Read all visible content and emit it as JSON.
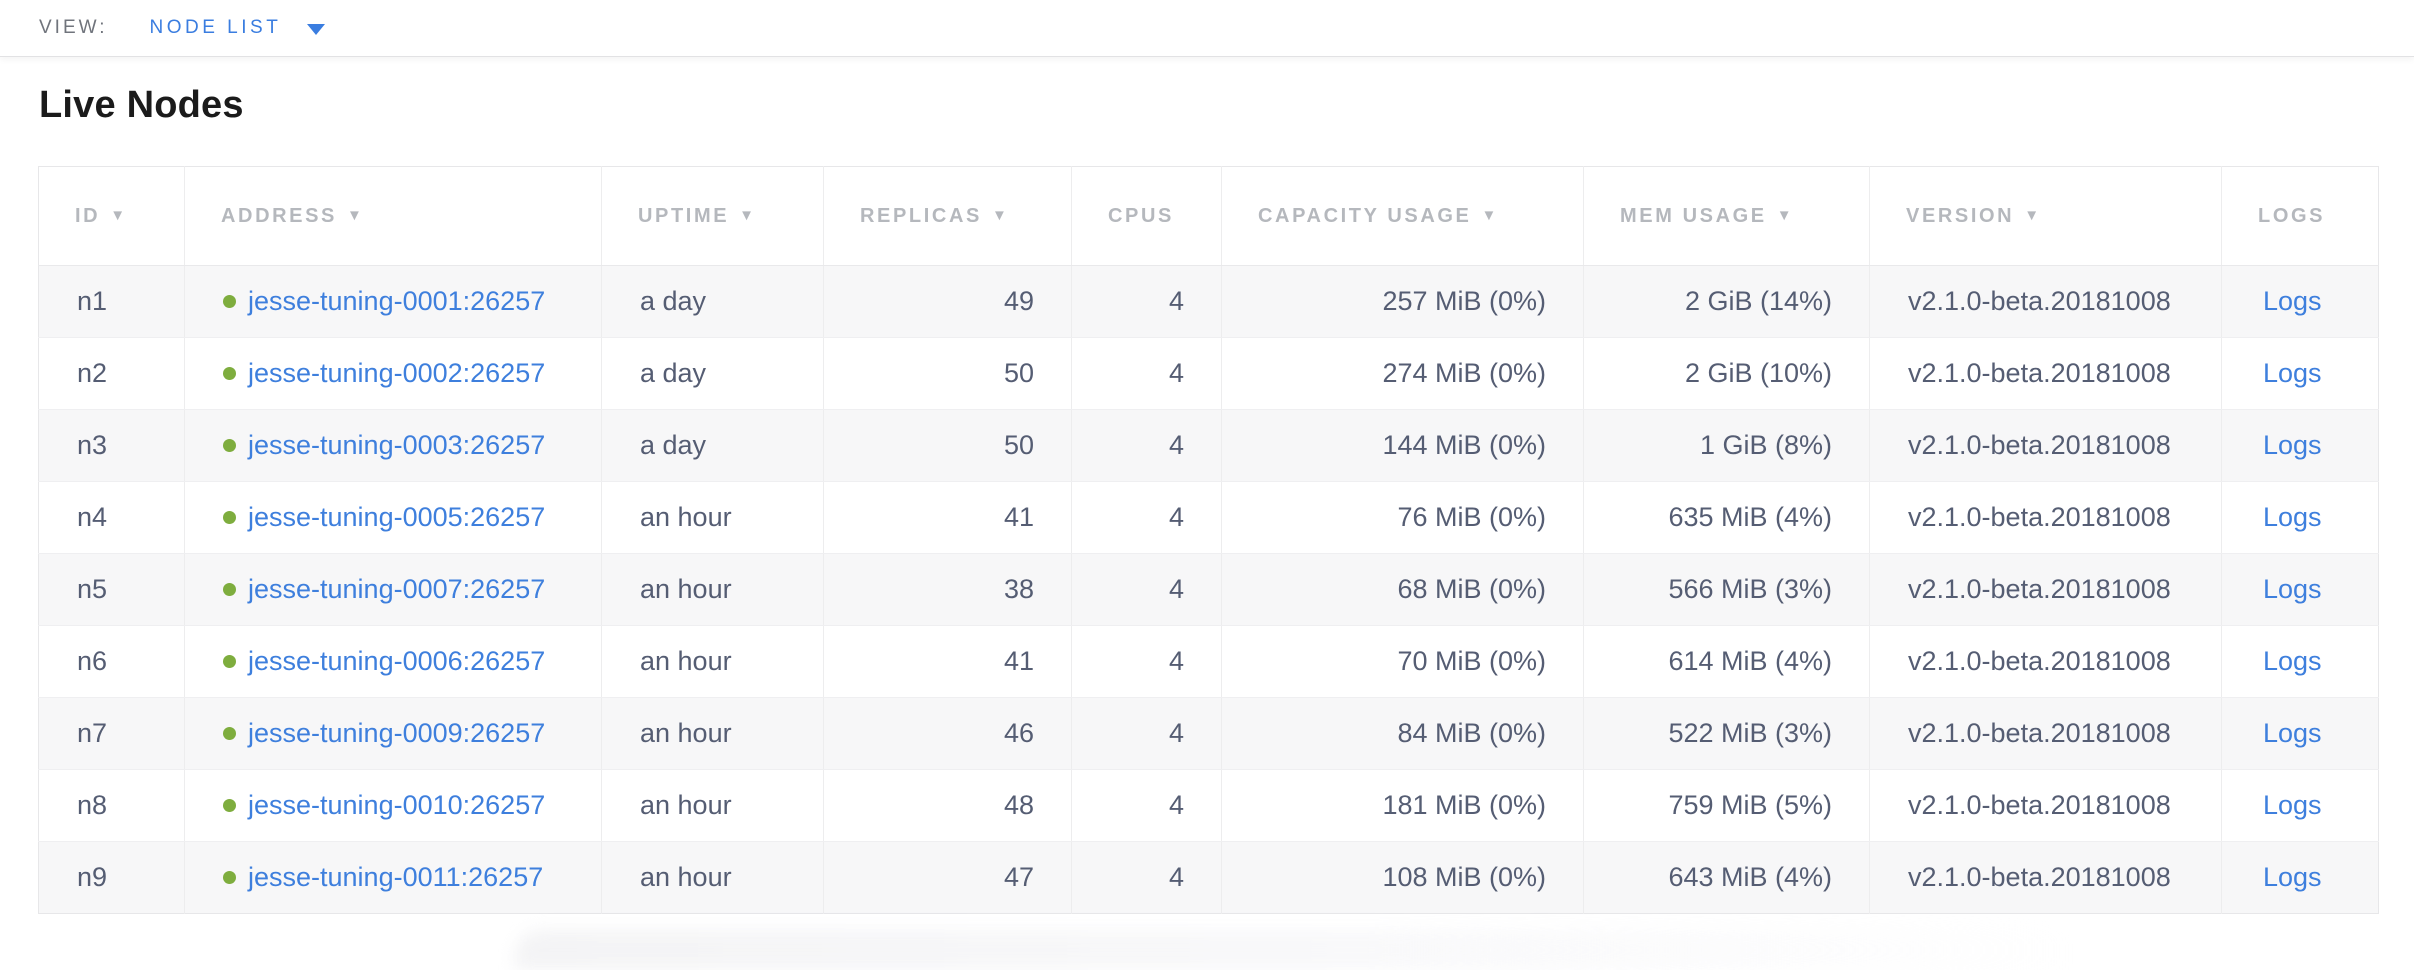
{
  "view_bar": {
    "label": "VIEW:",
    "selected": "NODE LIST"
  },
  "page": {
    "title": "Live Nodes"
  },
  "colors": {
    "accent_blue": "#3a7de0",
    "link_blue": "#3e7fdd",
    "healthy_green": "#7ead3e",
    "header_gray": "#b5b8bd",
    "cell_text": "#555d73",
    "row_alt_bg": "#f7f7f8"
  },
  "table": {
    "columns": [
      {
        "label": "ID",
        "sort": "▼"
      },
      {
        "label": "ADDRESS",
        "sort": "▼"
      },
      {
        "label": "UPTIME",
        "sort": "▼"
      },
      {
        "label": "REPLICAS",
        "sort": "▼"
      },
      {
        "label": "CPUS",
        "sort": ""
      },
      {
        "label": "CAPACITY USAGE",
        "sort": "▼"
      },
      {
        "label": "MEM USAGE",
        "sort": "▼"
      },
      {
        "label": "VERSION",
        "sort": "▼"
      },
      {
        "label": "LOGS",
        "sort": ""
      }
    ],
    "rows": [
      {
        "id": "n1",
        "status": "healthy",
        "address": "jesse-tuning-0001:26257",
        "uptime": "a day",
        "replicas": "49",
        "cpus": "4",
        "capacity": "257 MiB (0%)",
        "mem": "2 GiB (14%)",
        "version": "v2.1.0-beta.20181008",
        "logs": "Logs"
      },
      {
        "id": "n2",
        "status": "healthy",
        "address": "jesse-tuning-0002:26257",
        "uptime": "a day",
        "replicas": "50",
        "cpus": "4",
        "capacity": "274 MiB (0%)",
        "mem": "2 GiB (10%)",
        "version": "v2.1.0-beta.20181008",
        "logs": "Logs"
      },
      {
        "id": "n3",
        "status": "healthy",
        "address": "jesse-tuning-0003:26257",
        "uptime": "a day",
        "replicas": "50",
        "cpus": "4",
        "capacity": "144 MiB (0%)",
        "mem": "1 GiB (8%)",
        "version": "v2.1.0-beta.20181008",
        "logs": "Logs"
      },
      {
        "id": "n4",
        "status": "healthy",
        "address": "jesse-tuning-0005:26257",
        "uptime": "an hour",
        "replicas": "41",
        "cpus": "4",
        "capacity": "76 MiB (0%)",
        "mem": "635 MiB (4%)",
        "version": "v2.1.0-beta.20181008",
        "logs": "Logs"
      },
      {
        "id": "n5",
        "status": "healthy",
        "address": "jesse-tuning-0007:26257",
        "uptime": "an hour",
        "replicas": "38",
        "cpus": "4",
        "capacity": "68 MiB (0%)",
        "mem": "566 MiB (3%)",
        "version": "v2.1.0-beta.20181008",
        "logs": "Logs"
      },
      {
        "id": "n6",
        "status": "healthy",
        "address": "jesse-tuning-0006:26257",
        "uptime": "an hour",
        "replicas": "41",
        "cpus": "4",
        "capacity": "70 MiB (0%)",
        "mem": "614 MiB (4%)",
        "version": "v2.1.0-beta.20181008",
        "logs": "Logs"
      },
      {
        "id": "n7",
        "status": "healthy",
        "address": "jesse-tuning-0009:26257",
        "uptime": "an hour",
        "replicas": "46",
        "cpus": "4",
        "capacity": "84 MiB (0%)",
        "mem": "522 MiB (3%)",
        "version": "v2.1.0-beta.20181008",
        "logs": "Logs"
      },
      {
        "id": "n8",
        "status": "healthy",
        "address": "jesse-tuning-0010:26257",
        "uptime": "an hour",
        "replicas": "48",
        "cpus": "4",
        "capacity": "181 MiB (0%)",
        "mem": "759 MiB (5%)",
        "version": "v2.1.0-beta.20181008",
        "logs": "Logs"
      },
      {
        "id": "n9",
        "status": "healthy",
        "address": "jesse-tuning-0011:26257",
        "uptime": "an hour",
        "replicas": "47",
        "cpus": "4",
        "capacity": "108 MiB (0%)",
        "mem": "643 MiB (4%)",
        "version": "v2.1.0-beta.20181008",
        "logs": "Logs"
      }
    ]
  }
}
